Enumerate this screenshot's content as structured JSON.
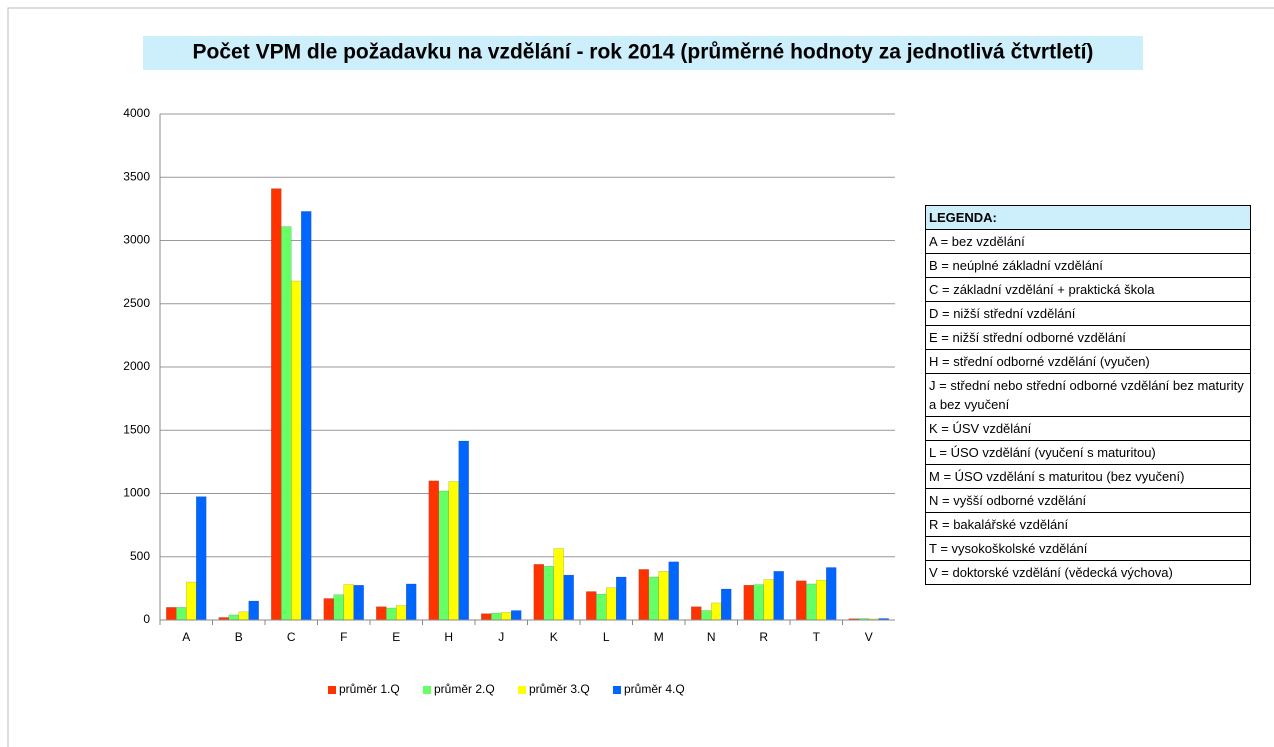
{
  "chart_data": {
    "type": "bar",
    "title": "Počet VPM dle požadavku na vzdělání - rok 2014 (průměrné hodnoty za jednotlivá čtvrtletí)",
    "categories": [
      "A",
      "B",
      "C",
      "F",
      "E",
      "H",
      "J",
      "K",
      "L",
      "M",
      "N",
      "R",
      "T",
      "V"
    ],
    "series": [
      {
        "name": "průměr 1.Q",
        "color": "#ff3300",
        "values": [
          100,
          20,
          3410,
          170,
          105,
          1100,
          50,
          440,
          225,
          400,
          105,
          275,
          310,
          10
        ]
      },
      {
        "name": "průměr 2.Q",
        "color": "#66ff66",
        "values": [
          100,
          40,
          3110,
          200,
          95,
          1020,
          55,
          425,
          205,
          340,
          75,
          280,
          285,
          12
        ]
      },
      {
        "name": "průměr 3.Q",
        "color": "#ffff00",
        "values": [
          300,
          65,
          2680,
          280,
          115,
          1095,
          60,
          565,
          255,
          385,
          135,
          320,
          315,
          8
        ]
      },
      {
        "name": "průměr 4.Q",
        "color": "#0066ff",
        "values": [
          975,
          150,
          3230,
          275,
          285,
          1415,
          75,
          355,
          340,
          460,
          245,
          385,
          415,
          12
        ]
      }
    ],
    "ylim": [
      0,
      4000
    ],
    "yticks": [
      0,
      500,
      1000,
      1500,
      2000,
      2500,
      3000,
      3500,
      4000
    ],
    "grid": true,
    "legend": "bottom"
  },
  "key_table": {
    "header": "LEGENDA:",
    "rows": [
      "A = bez vzdělání",
      "B = neúplné základní vzdělání",
      "C = základní vzdělání + praktická škola",
      "D = nižší střední vzdělání",
      "E = nižší střední odborné vzdělání",
      "H = střední odborné vzdělání (vyučen)",
      "J = střední nebo střední odborné vzdělání bez maturity a bez vyučení",
      "K = ÚSV vzdělání",
      "L = ÚSO vzdělání (vyučení s maturitou)",
      "M = ÚSO vzdělání s maturitou (bez vyučení)",
      "N = vyšší odborné vzdělání",
      "R = bakalářské vzdělání",
      "T = vysokoškolské vzdělání",
      "V = doktorské vzdělání (vědecká výchova)"
    ]
  }
}
